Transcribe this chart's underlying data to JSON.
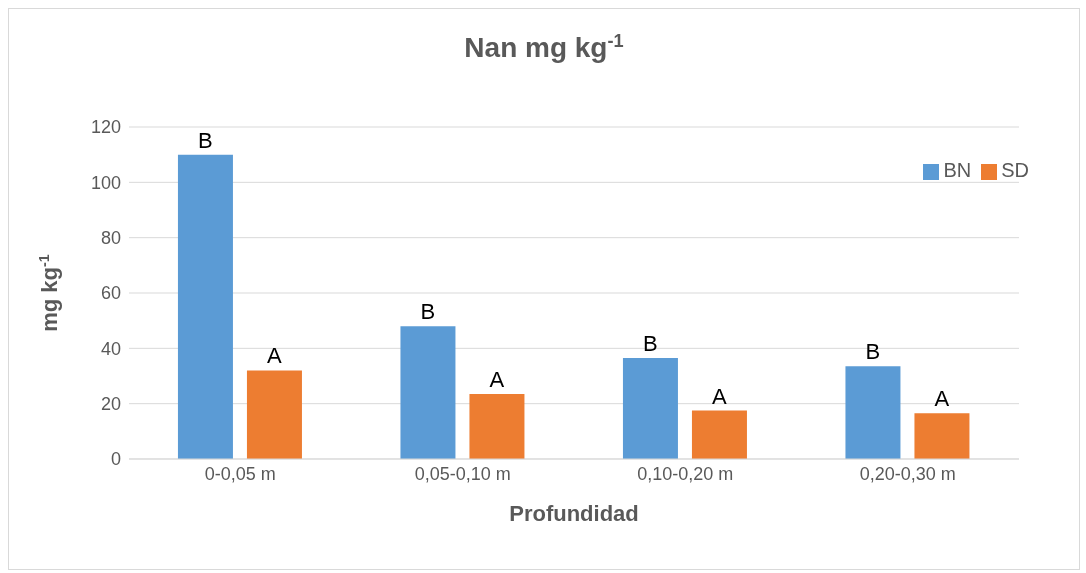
{
  "chart_data": {
    "type": "bar",
    "title": "Nan mg kg$^{-1}$",
    "xlabel": "Profundidad",
    "ylabel": "mg kg$^{-1}$",
    "categories": [
      "0-0,05 m",
      "0,05-0,10 m",
      "0,10-0,20 m",
      "0,20-0,30 m"
    ],
    "series": [
      {
        "name": "BN",
        "color": "#5b9bd5",
        "values": [
          110,
          48,
          36.5,
          33.5
        ],
        "value_labels": [
          "B",
          "B",
          "B",
          "B"
        ]
      },
      {
        "name": "SD",
        "color": "#ed7d31",
        "values": [
          32,
          23.5,
          17.5,
          16.5
        ],
        "value_labels": [
          "A",
          "A",
          "A",
          "A"
        ]
      }
    ],
    "ylim": [
      0,
      120
    ],
    "yticks": [
      0,
      20,
      40,
      60,
      80,
      100,
      120
    ],
    "grid": "y",
    "legend": "top right"
  }
}
